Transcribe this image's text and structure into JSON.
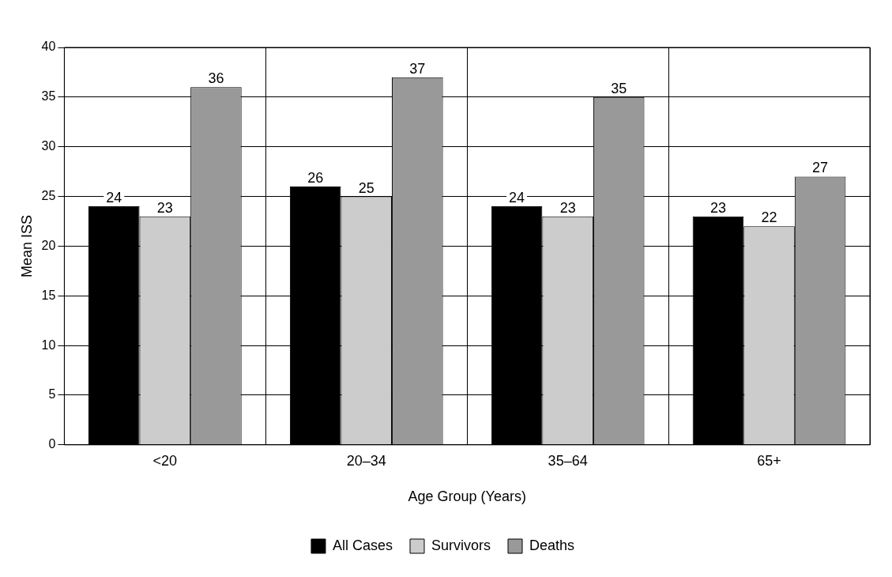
{
  "chart_data": {
    "type": "bar",
    "xlabel": "Age Group (Years)",
    "ylabel": "Mean ISS",
    "categories": [
      "<20",
      "20–34",
      "35–64",
      "65+"
    ],
    "series": [
      {
        "name": "All Cases",
        "color": "#000000",
        "values": [
          24,
          26,
          24,
          23
        ]
      },
      {
        "name": "Survivors",
        "color": "#cccccc",
        "values": [
          23,
          25,
          23,
          22
        ]
      },
      {
        "name": "Deaths",
        "color": "#999999",
        "values": [
          36,
          37,
          35,
          27
        ]
      }
    ],
    "ylim": [
      0,
      40
    ],
    "yticks": [
      0,
      5,
      10,
      15,
      20,
      25,
      30,
      35,
      40
    ],
    "grid": true,
    "legend": "bottom",
    "data_labels": true
  }
}
